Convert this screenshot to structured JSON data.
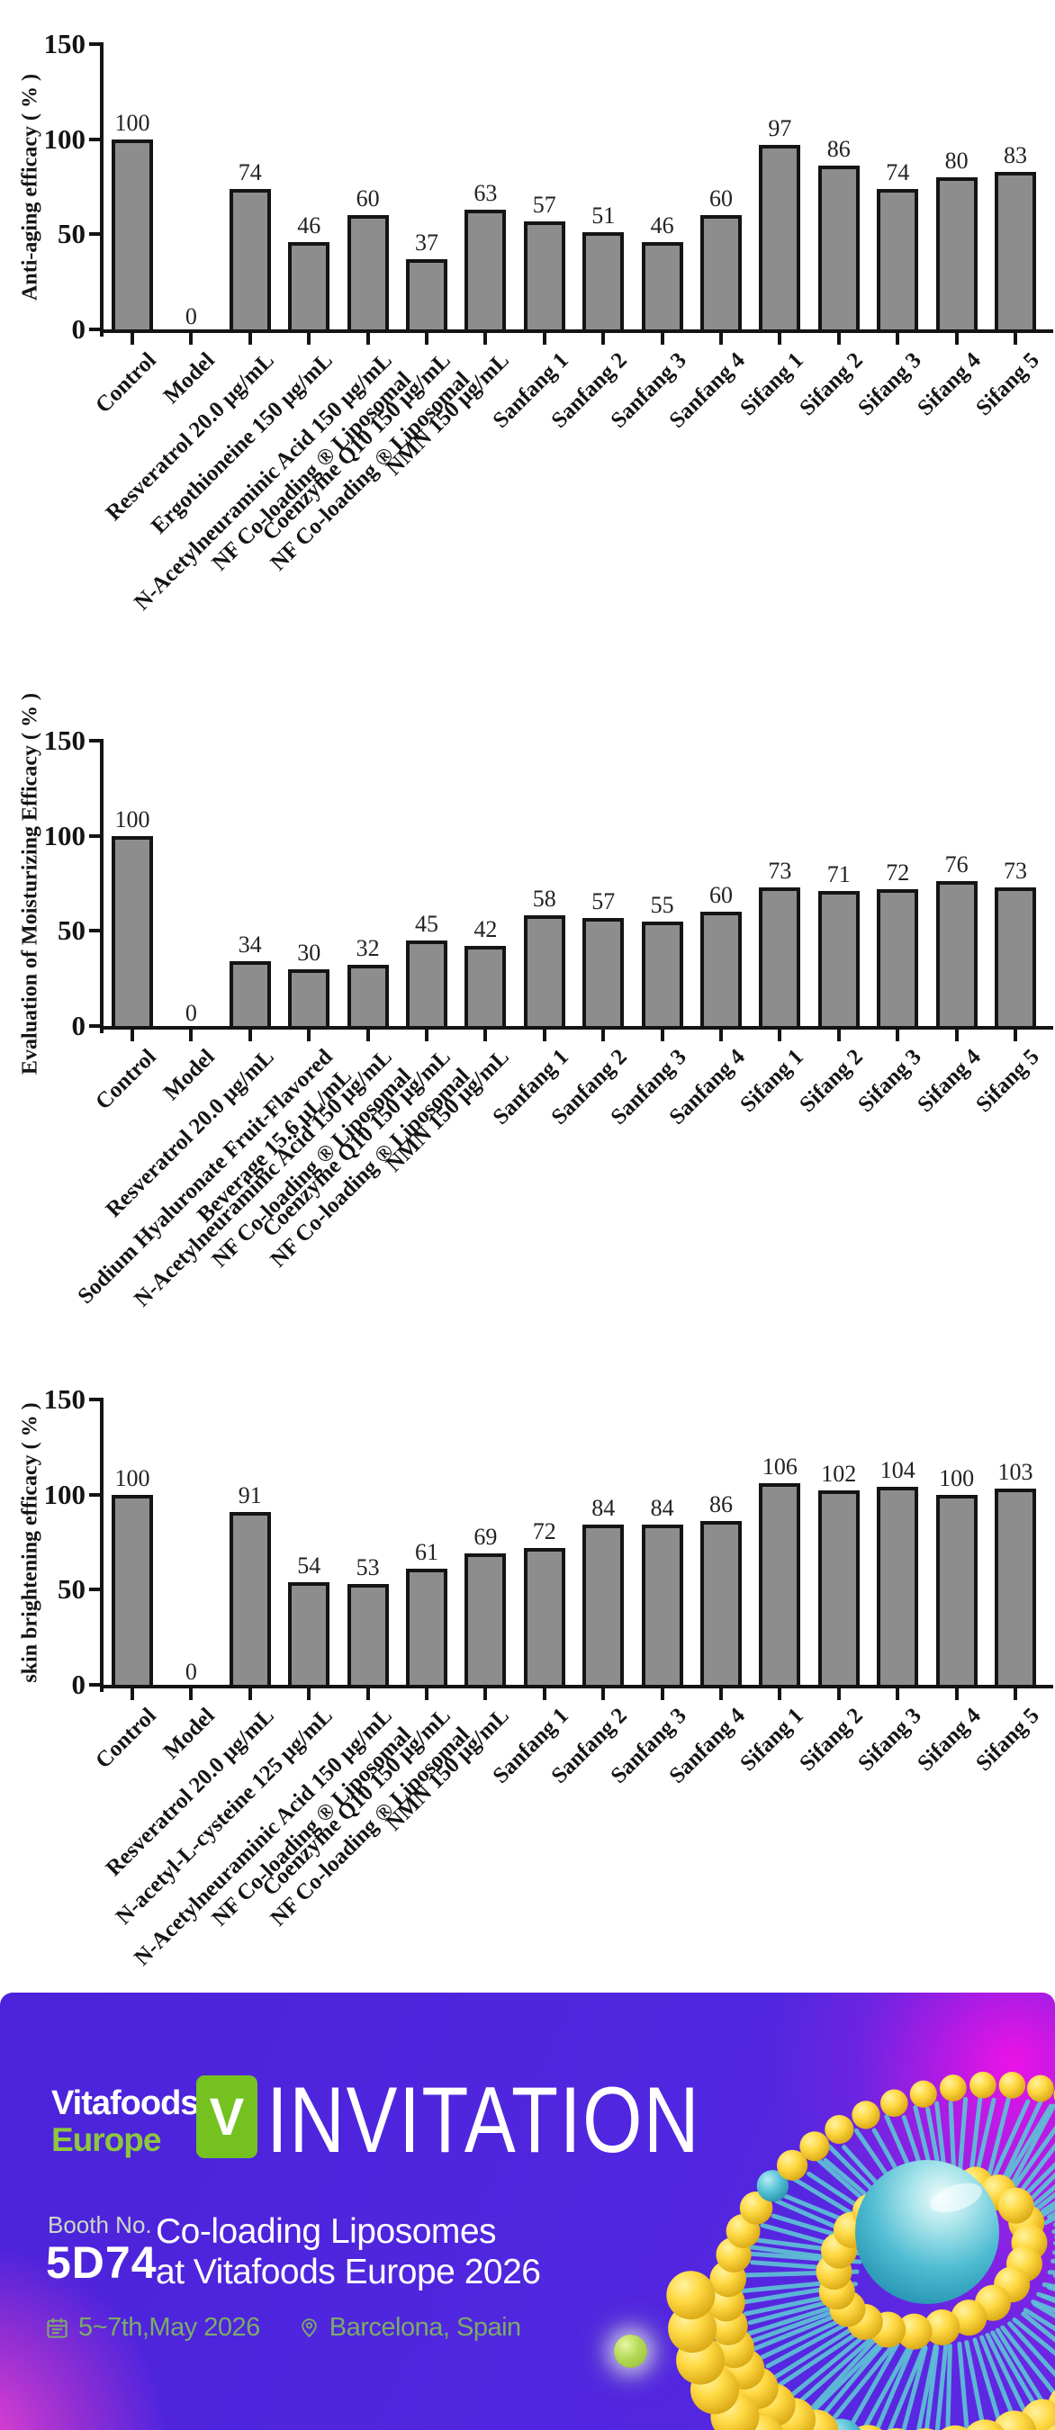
{
  "chart_data": [
    {
      "type": "bar",
      "title": "",
      "ylabel": "Anti-aging efficacy ( % )",
      "xlabel": "",
      "ylim": [
        0,
        150
      ],
      "yticks": [
        0,
        50,
        100,
        150
      ],
      "grid": false,
      "legend": null,
      "bar_fill": "#8d8d8d",
      "bar_border": "#141414",
      "categories": [
        "Control",
        "Model",
        "Resveratrol 20.0 μg/mL",
        "Ergothioneine 150 μg/mL",
        "N-Acetylneuraminic Acid 150 μg/mL\nNF Co-loading ® Liposomal",
        "Coenzyme Q10 150 μg/mL\nNF Co-loading ® Liposomal",
        "NMN 150 μg/mL",
        "Sanfang 1",
        "Sanfang 2",
        "Sanfang 3",
        "Sanfang 4",
        "Sifang 1",
        "Sifang 2",
        "Sifang 3",
        "Sifang 4",
        "Sifang 5"
      ],
      "values": [
        100,
        0,
        74,
        46,
        60,
        37,
        63,
        57,
        51,
        46,
        60,
        97,
        86,
        74,
        80,
        83
      ]
    },
    {
      "type": "bar",
      "title": "",
      "ylabel": "Evaluation of Moisturizing Efficacy ( % )",
      "xlabel": "",
      "ylim": [
        0,
        150
      ],
      "yticks": [
        0,
        50,
        100,
        150
      ],
      "grid": false,
      "legend": null,
      "bar_fill": "#8d8d8d",
      "bar_border": "#141414",
      "categories": [
        "Control",
        "Model",
        "Resveratrol 20.0 μg/mL",
        "Sodium Hyaluronate Fruit-Flavored\nBeverage 15.6 μL/mL",
        "N-Acetylneuraminic Acid 150 μg/mL\nNF Co-loading ® Liposomal",
        "Coenzyme Q10 150 μg/mL\nNF Co-loading ® Liposomal",
        "NMN 150 μg/mL",
        "Sanfang 1",
        "Sanfang 2",
        "Sanfang 3",
        "Sanfang 4",
        "Sifang 1",
        "Sifang 2",
        "Sifang 3",
        "Sifang 4",
        "Sifang 5"
      ],
      "values": [
        100,
        0,
        34,
        30,
        32,
        45,
        42,
        58,
        57,
        55,
        60,
        73,
        71,
        72,
        76,
        73
      ]
    },
    {
      "type": "bar",
      "title": "",
      "ylabel": "skin brightening efficacy ( % )",
      "xlabel": "",
      "ylim": [
        0,
        150
      ],
      "yticks": [
        0,
        50,
        100,
        150
      ],
      "grid": false,
      "legend": null,
      "bar_fill": "#8d8d8d",
      "bar_border": "#141414",
      "categories": [
        "Control",
        "Model",
        "Resveratrol 20.0 μg/mL",
        "N-acetyl-L-cysteine 125 μg/mL",
        "N-Acetylneuraminic Acid 150 μg/mL\nNF Co-loading ® Liposomal",
        "Coenzyme Q10 150 μg/mL\nNF Co-loading ® Liposomal",
        "NMN 150 μg/mL",
        "Sanfang 1",
        "Sanfang 2",
        "Sanfang 3",
        "Sanfang 4",
        "Sifang 1",
        "Sifang 2",
        "Sifang 3",
        "Sifang 4",
        "Sifang 5"
      ],
      "values": [
        100,
        0,
        91,
        54,
        53,
        61,
        69,
        72,
        84,
        84,
        86,
        106,
        102,
        104,
        100,
        103
      ]
    }
  ],
  "banner": {
    "logo_name": "Vitafoods",
    "logo_tm": "™",
    "logo_region": "Europe",
    "badge_letter": "V",
    "title": "INVITATION",
    "booth_label": "Booth No.",
    "booth_number": "5D74",
    "headline": [
      "Co-loading Liposomes",
      "at Vitafoods Europe 2026"
    ],
    "date": "5~7th,May 2026",
    "location": "Barcelona, Spain",
    "colors": {
      "background": "#4b23da",
      "magenta": "#f212e6",
      "pink": "#ff46cd",
      "badge_green": "#75c120",
      "logo_green": "#8dc63f",
      "meta_green": "#7cab68",
      "text_white": "#ffffff",
      "lipid_yellow": "#f5ce2a",
      "lipid_teal": "#5ec1d6"
    }
  }
}
